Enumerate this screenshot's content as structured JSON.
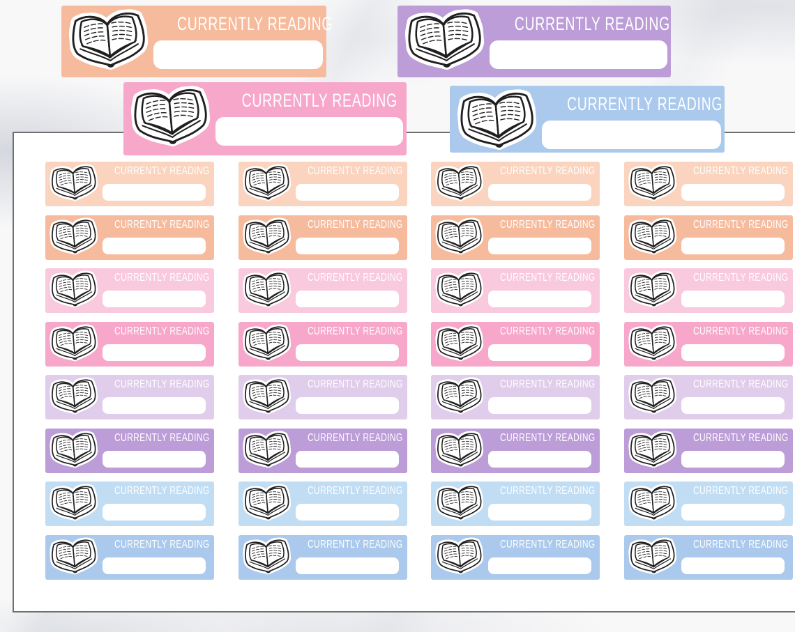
{
  "product": {
    "label": "CURRENTLY READING",
    "icon": "open-book",
    "label_color": "#ffffff",
    "writebox_color": "#ffffff"
  },
  "preview_stickers": [
    {
      "name": "peach",
      "color": "#f6bb9d"
    },
    {
      "name": "purple",
      "color": "#bc9dd8"
    },
    {
      "name": "pink",
      "color": "#f7a7ca"
    },
    {
      "name": "blue",
      "color": "#aac9ec"
    }
  ],
  "sticker_sheet": {
    "columns": 4,
    "rows": 8,
    "total_stickers": 32,
    "sheet_color": "#ffffff",
    "sheet_border_color": "#6e6e6e",
    "row_colors": [
      {
        "name": "light-peach",
        "color": "#fad4bf"
      },
      {
        "name": "peach",
        "color": "#f6bb9d"
      },
      {
        "name": "light-pink",
        "color": "#f9c9de"
      },
      {
        "name": "pink",
        "color": "#f7a7ca"
      },
      {
        "name": "light-lavender",
        "color": "#e0cdeb"
      },
      {
        "name": "purple",
        "color": "#bc9dd8"
      },
      {
        "name": "light-blue",
        "color": "#c1ddf4"
      },
      {
        "name": "blue",
        "color": "#aac9ec"
      }
    ]
  },
  "background": {
    "base_color": "#f8f8f9",
    "vein_color": "#c9ced8"
  }
}
